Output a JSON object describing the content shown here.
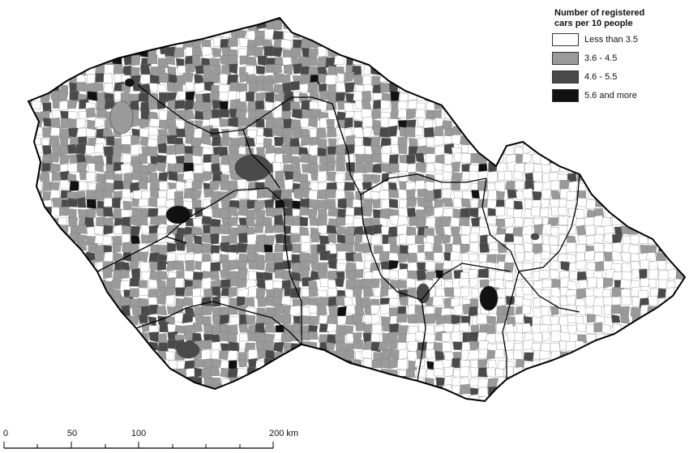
{
  "legend": {
    "title_line1": "Number of registered",
    "title_line2": "cars per 10 people",
    "items": [
      {
        "label": "Less than 3.5",
        "color": "#ffffff"
      },
      {
        "label": "3.6 - 4.5",
        "color": "#9a9a9a"
      },
      {
        "label": "4.6 - 5.5",
        "color": "#4a4a4a"
      },
      {
        "label": "5.6 and more",
        "color": "#111111"
      }
    ]
  },
  "scale_bar": {
    "labels": [
      "0",
      "50",
      "100",
      "200 km"
    ]
  },
  "colors": {
    "white_class": "#ffffff",
    "light_gray_class": "#9a9a9a",
    "dark_gray_class": "#4a4a4a",
    "black_class": "#111111",
    "border": "#000000"
  }
}
